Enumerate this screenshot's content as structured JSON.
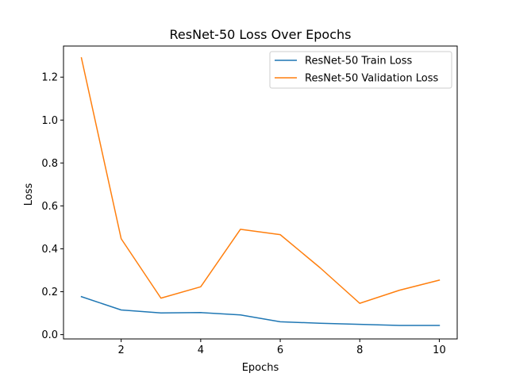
{
  "chart_data": {
    "type": "line",
    "title": "ResNet-50 Loss Over Epochs",
    "xlabel": "Epochs",
    "ylabel": "Loss",
    "x": [
      1,
      2,
      3,
      4,
      5,
      6,
      7,
      8,
      9,
      10
    ],
    "series": [
      {
        "name": "ResNet-50 Train Loss",
        "color": "#1f77b4",
        "values": [
          0.177,
          0.115,
          0.101,
          0.103,
          0.092,
          0.06,
          0.053,
          0.048,
          0.043,
          0.043
        ]
      },
      {
        "name": "ResNet-50 Validation Loss",
        "color": "#ff7f0e",
        "values": [
          1.29,
          0.447,
          0.17,
          0.223,
          0.491,
          0.466,
          0.312,
          0.146,
          0.207,
          0.254
        ]
      }
    ],
    "xlim": [
      0.55,
      10.45
    ],
    "ylim": [
      -0.02,
      1.345
    ],
    "xticks": [
      2,
      4,
      6,
      8,
      10
    ],
    "xtick_labels": [
      "2",
      "4",
      "6",
      "8",
      "10"
    ],
    "yticks": [
      0.0,
      0.2,
      0.4,
      0.6,
      0.8,
      1.0,
      1.2
    ],
    "ytick_labels": [
      "0.0",
      "0.2",
      "0.4",
      "0.6",
      "0.8",
      "1.0",
      "1.2"
    ],
    "grid": false,
    "legend_position": "top-right"
  }
}
